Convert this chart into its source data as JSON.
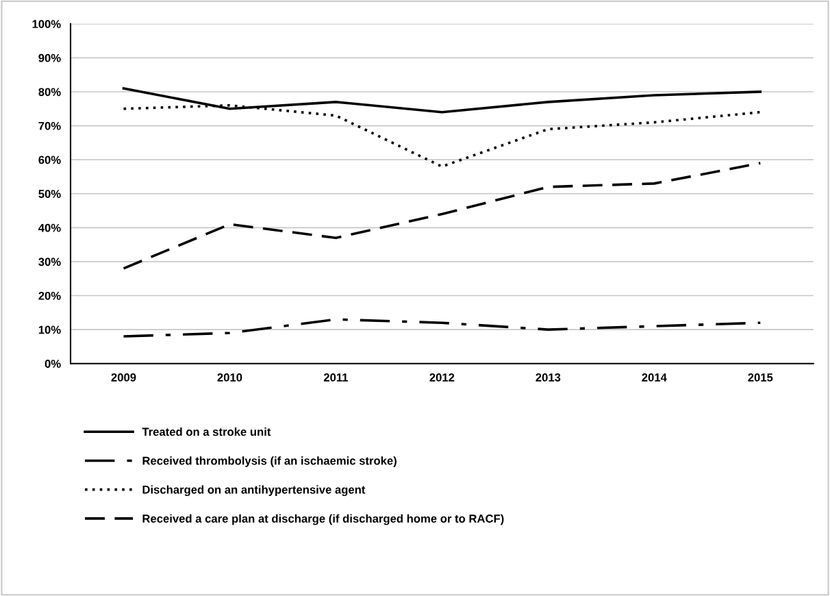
{
  "chart_data": {
    "type": "line",
    "categories": [
      "2009",
      "2010",
      "2011",
      "2012",
      "2013",
      "2014",
      "2015"
    ],
    "series": [
      {
        "name": "Treated on a stroke unit",
        "color": "#000000",
        "line_style": "solid",
        "values": [
          81,
          75,
          77,
          74,
          77,
          79,
          80
        ]
      },
      {
        "name": "Received thrombolysis (if an ischaemic stroke)",
        "color": "#000000",
        "line_style": "dashdot",
        "values": [
          8,
          9,
          13,
          12,
          10,
          11,
          12
        ]
      },
      {
        "name": "Discharged on an antihypertensive agent",
        "color": "#000000",
        "line_style": "dotted",
        "values": [
          75,
          76,
          73,
          58,
          69,
          71,
          74
        ]
      },
      {
        "name": "Received a care plan at discharge (if discharged home or to RACF)",
        "color": "#000000",
        "line_style": "dashed",
        "values": [
          28,
          41,
          37,
          44,
          52,
          53,
          59
        ]
      }
    ],
    "ylim": [
      0,
      100
    ],
    "yticks": [
      {
        "value": 0,
        "label": "0%"
      },
      {
        "value": 10,
        "label": "10%"
      },
      {
        "value": 20,
        "label": "20%"
      },
      {
        "value": 30,
        "label": "30%"
      },
      {
        "value": 40,
        "label": "40%"
      },
      {
        "value": 50,
        "label": "50%"
      },
      {
        "value": 60,
        "label": "60%"
      },
      {
        "value": 70,
        "label": "70%"
      },
      {
        "value": 80,
        "label": "80%"
      },
      {
        "value": 90,
        "label": "90%"
      },
      {
        "value": 100,
        "label": "100%"
      }
    ],
    "grid": "y",
    "legend": "bottom",
    "marker": "none"
  }
}
